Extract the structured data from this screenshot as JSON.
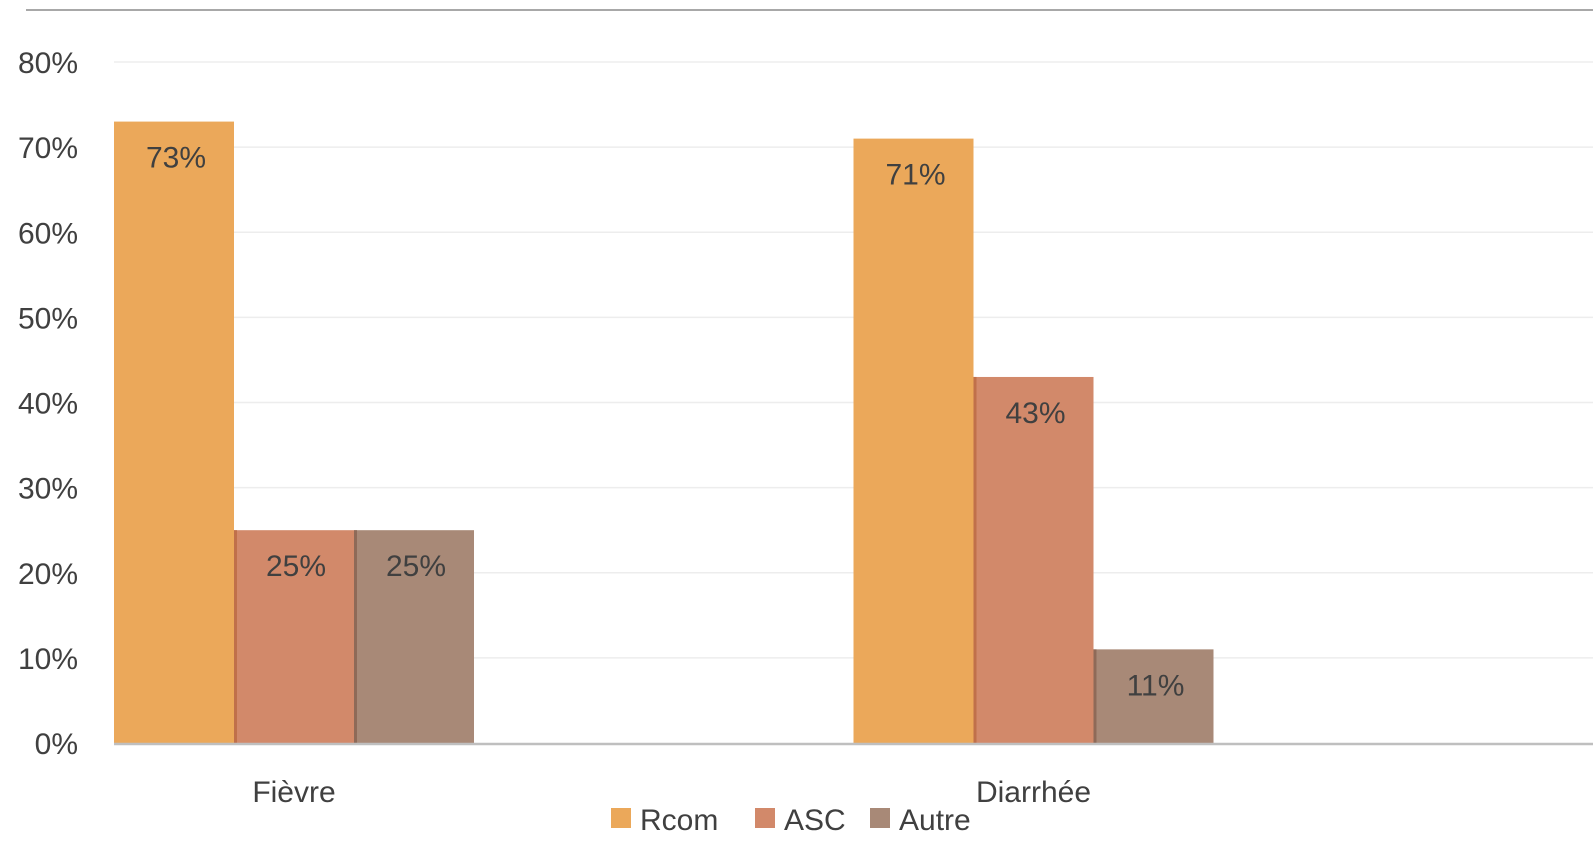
{
  "chart_data": {
    "type": "bar",
    "title": "",
    "xlabel": "",
    "ylabel": "",
    "categories": [
      "Fièvre",
      "Diarrhée"
    ],
    "series": [
      {
        "name": "Rcom",
        "values": [
          73,
          71
        ],
        "labels": [
          "73%",
          "71%"
        ],
        "color": "#EBA85A"
      },
      {
        "name": "ASC",
        "values": [
          25,
          43
        ],
        "labels": [
          "25%",
          "43%"
        ],
        "color": "#D2896A"
      },
      {
        "name": "Autre",
        "values": [
          25,
          11
        ],
        "labels": [
          "25%",
          "11%"
        ],
        "color": "#A88977"
      }
    ],
    "ylim": [
      0,
      80
    ],
    "yticks": [
      0,
      10,
      20,
      30,
      40,
      50,
      60,
      70,
      80
    ],
    "ytick_labels": [
      "0%",
      "10%",
      "20%",
      "30%",
      "40%",
      "50%",
      "60%",
      "70%",
      "80%"
    ],
    "grid": true,
    "legend_position": "bottom",
    "colors": {
      "grid": "#EDEDED",
      "axis": "#BFBFBF",
      "top_border": "#8C8C8C",
      "text": "#404040",
      "bar_edge_asc": "#C0704A",
      "bar_edge_autre": "#8E6A58"
    }
  }
}
